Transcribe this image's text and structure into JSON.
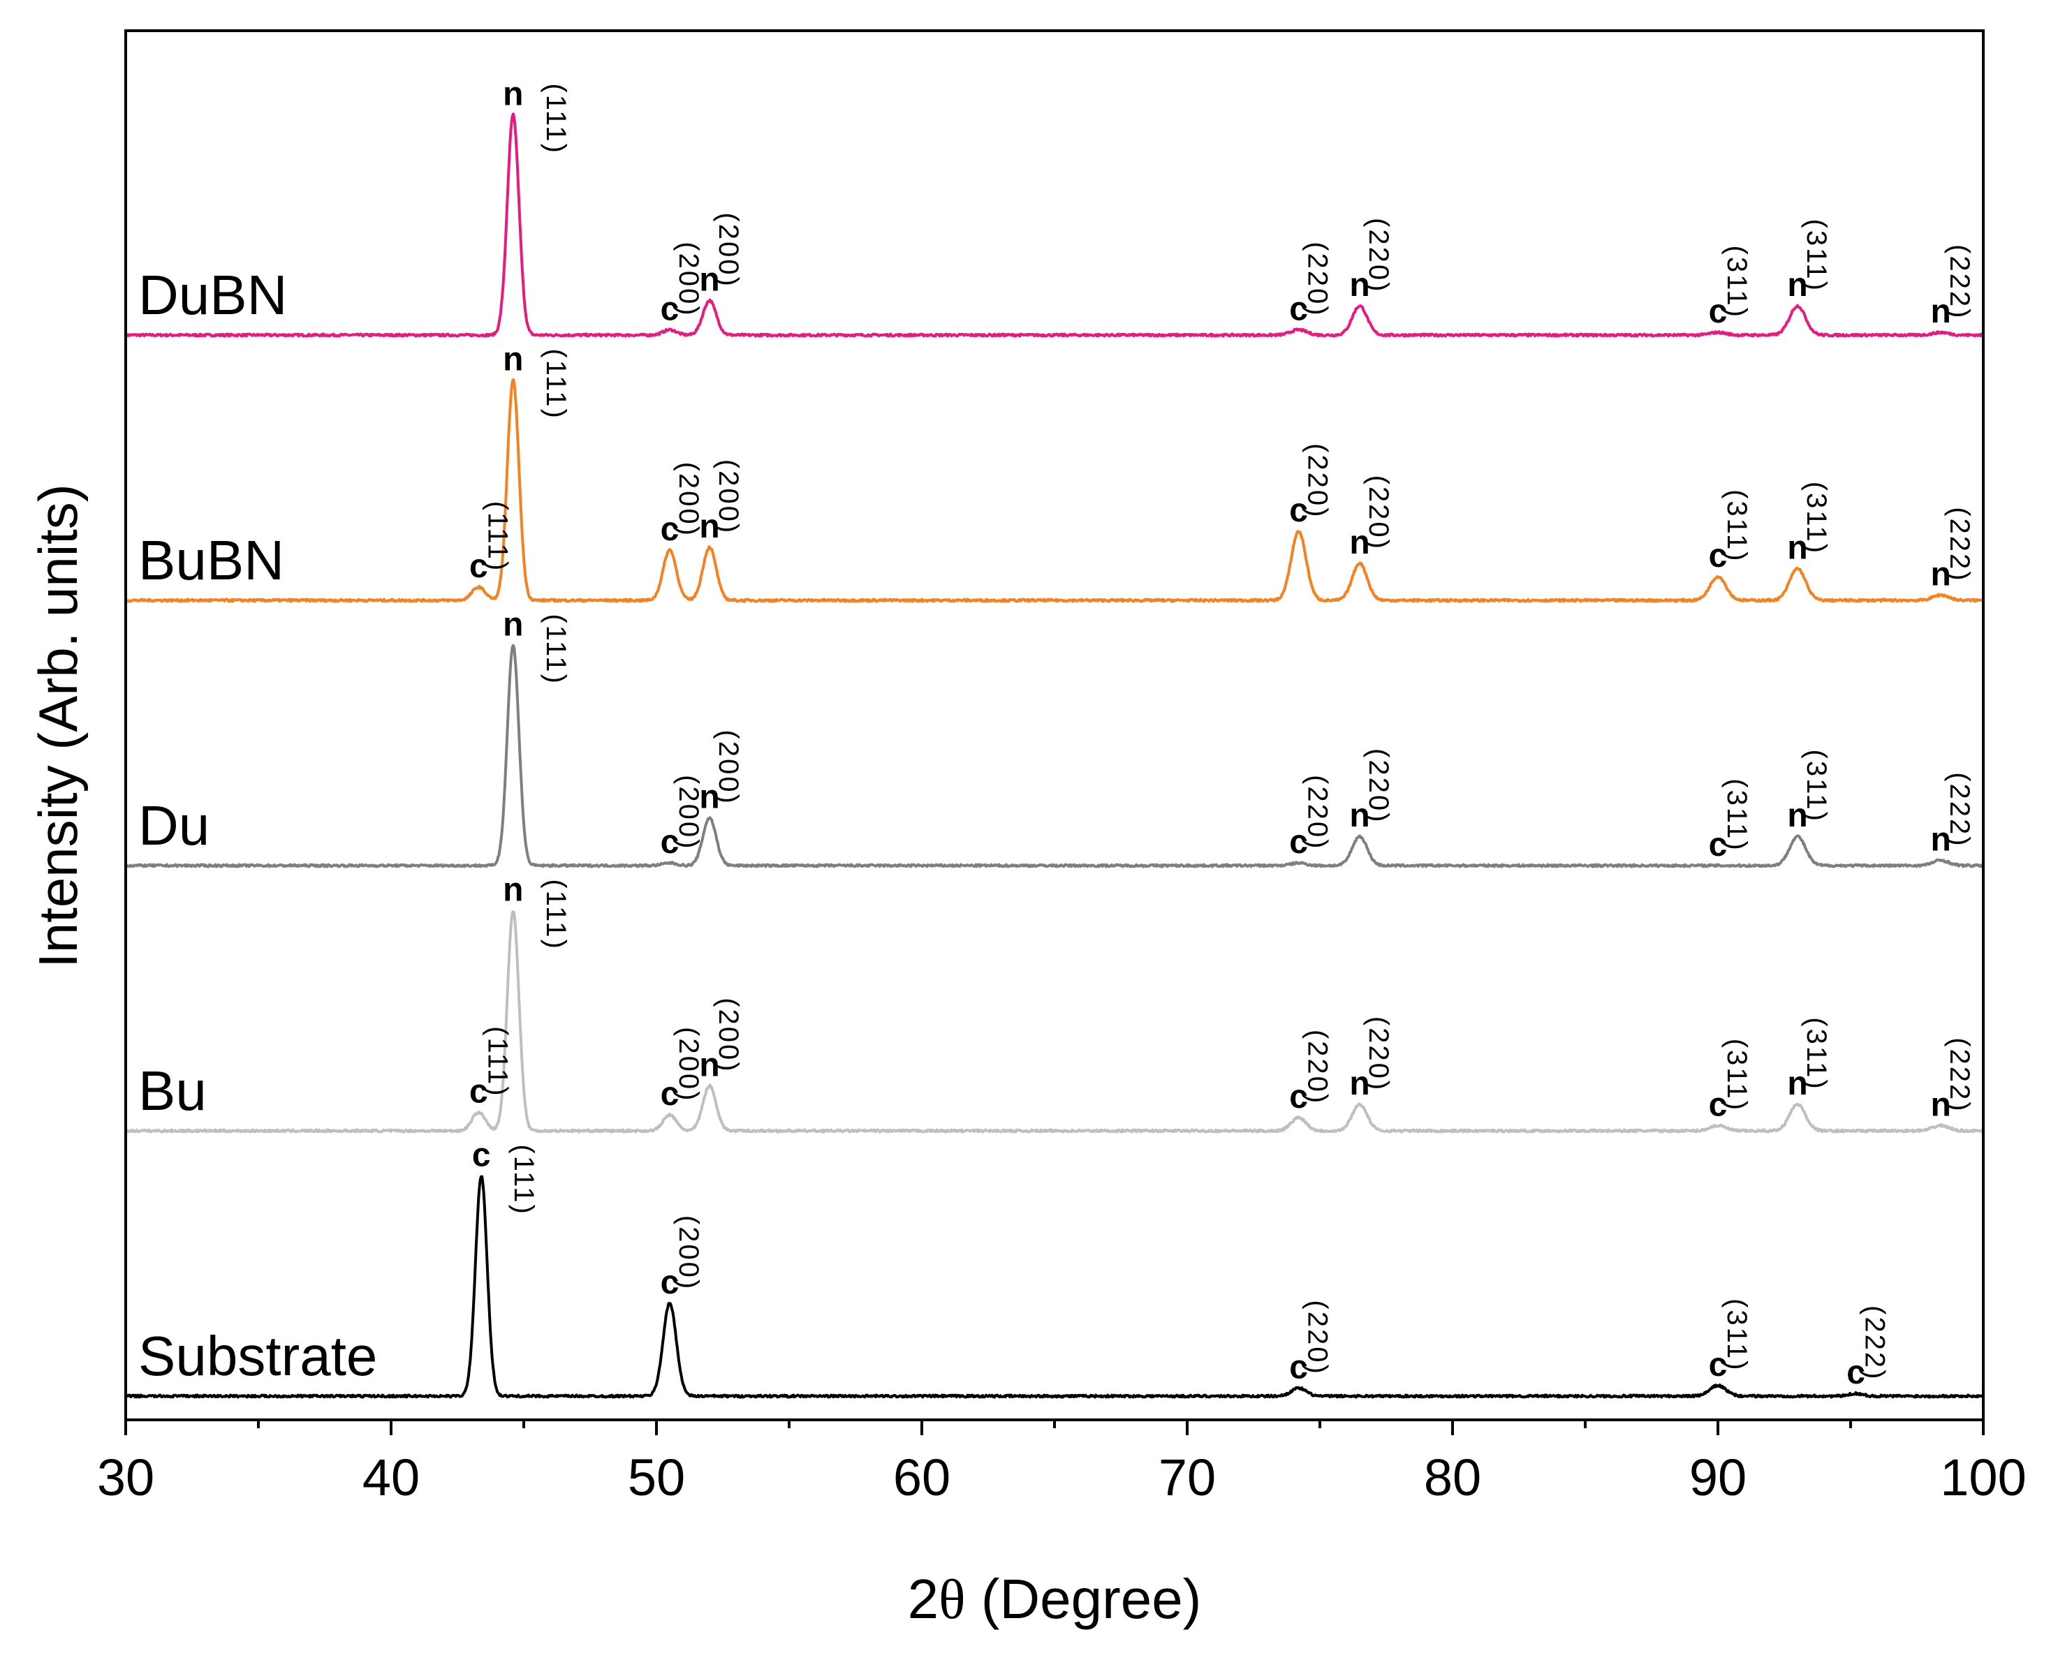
{
  "chart_data": {
    "type": "line",
    "title": "",
    "xlabel_prefix": "2",
    "xlabel_symbol": "θ",
    "xlabel_suffix": " (Degree)",
    "ylabel": "Intensity (Arb. units)",
    "xlim": [
      30,
      100
    ],
    "x_ticks": [
      30,
      40,
      50,
      60,
      70,
      80,
      90,
      100
    ],
    "x_minor_ticks": [
      35,
      45,
      55,
      65,
      75,
      85,
      95
    ],
    "y_ticks_shown": false,
    "stacked": true,
    "series": [
      {
        "name": "DuBN",
        "color": "#e8197f",
        "offset": 4,
        "peaks": [
          {
            "x": 44.6,
            "height": 0.83,
            "width": 0.22,
            "phase": "n",
            "hkl": "(111)"
          },
          {
            "x": 50.5,
            "height": 0.02,
            "width": 0.25,
            "phase": "c",
            "hkl": "(200)"
          },
          {
            "x": 52.0,
            "height": 0.13,
            "width": 0.25,
            "phase": "n",
            "hkl": "(200)"
          },
          {
            "x": 74.2,
            "height": 0.02,
            "width": 0.3,
            "phase": "c",
            "hkl": "(220)"
          },
          {
            "x": 76.5,
            "height": 0.11,
            "width": 0.28,
            "phase": "n",
            "hkl": "(220)"
          },
          {
            "x": 90.0,
            "height": 0.01,
            "width": 0.3,
            "phase": "c",
            "hkl": "(311)"
          },
          {
            "x": 93.0,
            "height": 0.11,
            "width": 0.3,
            "phase": "n",
            "hkl": "(311)"
          },
          {
            "x": 98.4,
            "height": 0.01,
            "width": 0.3,
            "phase": "n",
            "hkl": "(222)"
          }
        ]
      },
      {
        "name": "BuBN",
        "color": "#f5821f",
        "offset": 3,
        "peaks": [
          {
            "x": 43.3,
            "height": 0.05,
            "width": 0.25,
            "phase": "c",
            "hkl": "(111)"
          },
          {
            "x": 44.6,
            "height": 0.83,
            "width": 0.22,
            "phase": "n",
            "hkl": "(111)"
          },
          {
            "x": 50.5,
            "height": 0.19,
            "width": 0.25,
            "phase": "c",
            "hkl": "(200)"
          },
          {
            "x": 52.0,
            "height": 0.2,
            "width": 0.25,
            "phase": "n",
            "hkl": "(200)"
          },
          {
            "x": 74.2,
            "height": 0.26,
            "width": 0.28,
            "phase": "c",
            "hkl": "(220)"
          },
          {
            "x": 76.5,
            "height": 0.14,
            "width": 0.28,
            "phase": "n",
            "hkl": "(220)"
          },
          {
            "x": 90.0,
            "height": 0.09,
            "width": 0.3,
            "phase": "c",
            "hkl": "(311)"
          },
          {
            "x": 93.0,
            "height": 0.12,
            "width": 0.3,
            "phase": "n",
            "hkl": "(311)"
          },
          {
            "x": 98.4,
            "height": 0.02,
            "width": 0.3,
            "phase": "n",
            "hkl": "(222)"
          }
        ]
      },
      {
        "name": "Du",
        "color": "#7f7f7f",
        "offset": 2,
        "peaks": [
          {
            "x": 44.6,
            "height": 0.83,
            "width": 0.22,
            "phase": "n",
            "hkl": "(111)"
          },
          {
            "x": 50.5,
            "height": 0.01,
            "width": 0.25,
            "phase": "c",
            "hkl": "(200)"
          },
          {
            "x": 52.0,
            "height": 0.18,
            "width": 0.25,
            "phase": "n",
            "hkl": "(200)"
          },
          {
            "x": 74.2,
            "height": 0.01,
            "width": 0.28,
            "phase": "c",
            "hkl": "(220)"
          },
          {
            "x": 76.5,
            "height": 0.11,
            "width": 0.28,
            "phase": "n",
            "hkl": "(220)"
          },
          {
            "x": 90.0,
            "height": 0.0,
            "width": 0.3,
            "phase": "c",
            "hkl": "(311)"
          },
          {
            "x": 93.0,
            "height": 0.11,
            "width": 0.3,
            "phase": "n",
            "hkl": "(311)"
          },
          {
            "x": 98.4,
            "height": 0.02,
            "width": 0.3,
            "phase": "n",
            "hkl": "(222)"
          }
        ]
      },
      {
        "name": "Bu",
        "color": "#bfbfbf",
        "offset": 1,
        "peaks": [
          {
            "x": 43.3,
            "height": 0.07,
            "width": 0.25,
            "phase": "c",
            "hkl": "(111)"
          },
          {
            "x": 44.6,
            "height": 0.83,
            "width": 0.22,
            "phase": "n",
            "hkl": "(111)"
          },
          {
            "x": 50.5,
            "height": 0.06,
            "width": 0.25,
            "phase": "c",
            "hkl": "(200)"
          },
          {
            "x": 52.0,
            "height": 0.17,
            "width": 0.25,
            "phase": "n",
            "hkl": "(200)"
          },
          {
            "x": 74.2,
            "height": 0.05,
            "width": 0.28,
            "phase": "c",
            "hkl": "(220)"
          },
          {
            "x": 76.5,
            "height": 0.1,
            "width": 0.28,
            "phase": "n",
            "hkl": "(220)"
          },
          {
            "x": 90.0,
            "height": 0.02,
            "width": 0.3,
            "phase": "c",
            "hkl": "(311)"
          },
          {
            "x": 93.0,
            "height": 0.1,
            "width": 0.3,
            "phase": "n",
            "hkl": "(311)"
          },
          {
            "x": 98.4,
            "height": 0.02,
            "width": 0.3,
            "phase": "n",
            "hkl": "(222)"
          }
        ]
      },
      {
        "name": "Substrate",
        "color": "#000000",
        "offset": 0,
        "peaks": [
          {
            "x": 43.4,
            "height": 0.83,
            "width": 0.22,
            "phase": "c",
            "hkl": "(111)"
          },
          {
            "x": 50.5,
            "height": 0.35,
            "width": 0.25,
            "phase": "c",
            "hkl": "(200)"
          },
          {
            "x": 74.2,
            "height": 0.03,
            "width": 0.28,
            "phase": "c",
            "hkl": "(220)"
          },
          {
            "x": 90.0,
            "height": 0.04,
            "width": 0.3,
            "phase": "c",
            "hkl": "(311)"
          },
          {
            "x": 95.2,
            "height": 0.01,
            "width": 0.25,
            "phase": "c",
            "hkl": "(222)"
          }
        ]
      }
    ]
  }
}
